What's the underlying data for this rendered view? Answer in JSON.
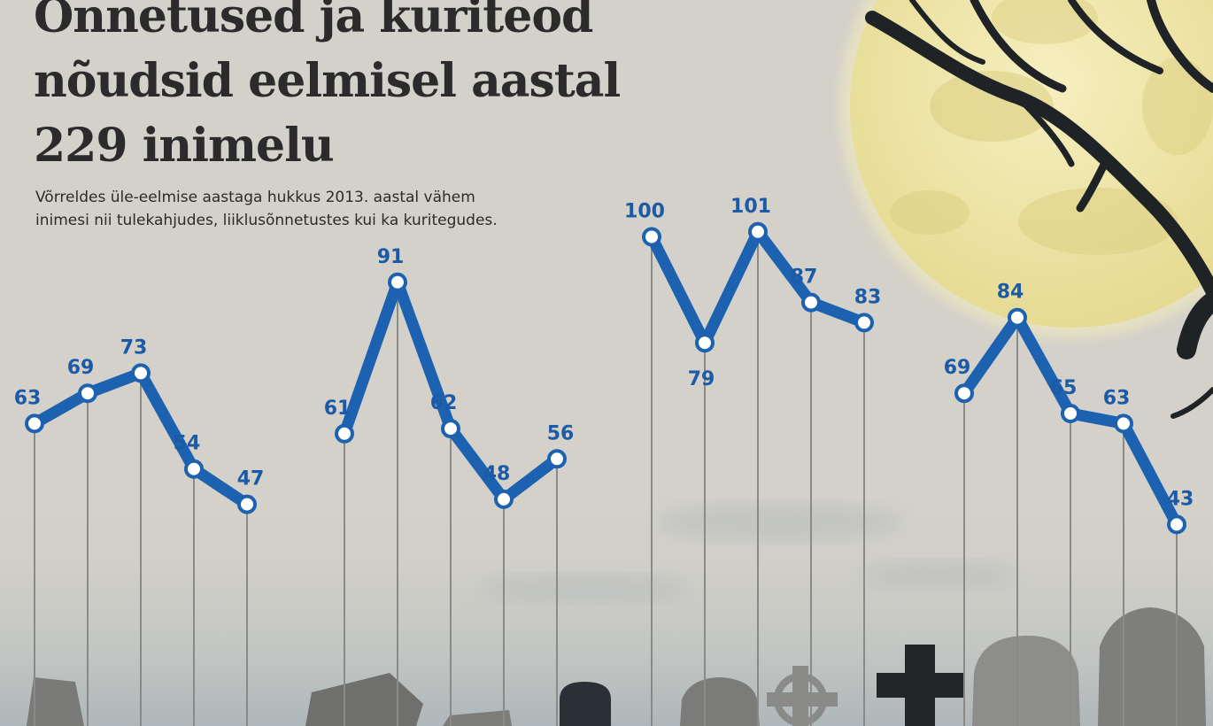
{
  "headline": "Õnnetused ja kuriteod nõudsid eelmisel aastal 229 inimelu",
  "subtitle": "Võrreldes üle-eelmise aastaga hukkus 2013. aastal vähem inimesi nii tulekahjudes, liiklusõnnetustes kui ka kuritegudes.",
  "colors": {
    "line": "#1d62b1",
    "label": "#1d5aa6",
    "marker_fill": "#ffffff",
    "stem": "#8a8a86",
    "background": "#d3d1c9",
    "moon": "#efe7ab",
    "tombstone": "#6e6e6c"
  },
  "chart_data": [
    {
      "type": "line",
      "series": [
        {
          "values": [
            63,
            69,
            73,
            54,
            47
          ]
        }
      ]
    },
    {
      "type": "line",
      "series": [
        {
          "values": [
            61,
            91,
            62,
            48,
            56
          ]
        }
      ]
    },
    {
      "type": "line",
      "series": [
        {
          "values": [
            100,
            79,
            101,
            87,
            83
          ]
        }
      ]
    },
    {
      "type": "line",
      "series": [
        {
          "values": [
            69,
            84,
            65,
            63,
            43
          ]
        }
      ]
    }
  ]
}
